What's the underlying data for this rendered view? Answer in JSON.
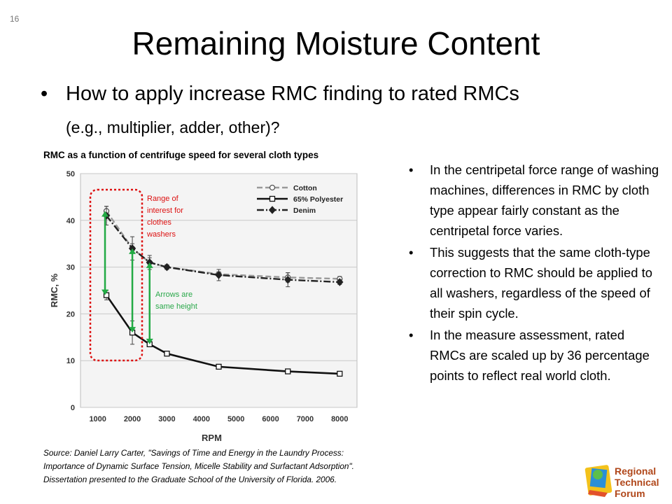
{
  "slide": {
    "number": "16",
    "title": "Remaining Moisture Content"
  },
  "main_bullet": {
    "marker": "•",
    "text": "How to apply increase RMC finding to rated RMCs",
    "subtext": "(e.g., multiplier, adder, other)?"
  },
  "chart_caption": "RMC as a function of centrifuge speed for several cloth types",
  "annotations": {
    "range_label": [
      "Range of",
      "interest for",
      "clothes",
      "washers"
    ],
    "arrows_label": [
      "Arrows are",
      "same height"
    ],
    "range_color": "#dd1111",
    "arrow_color": "#22aa44",
    "arrow_text_color": "#2aa84a"
  },
  "chart_data": {
    "type": "line",
    "xlabel": "RPM",
    "ylabel": "RMC, %",
    "xlim": [
      500,
      8500
    ],
    "ylim": [
      0,
      50
    ],
    "x_ticks": [
      1000,
      2000,
      3000,
      4000,
      5000,
      6000,
      7000,
      8000
    ],
    "y_ticks": [
      0,
      10,
      20,
      30,
      40,
      50
    ],
    "grid": true,
    "legend_position": "top-right",
    "series": [
      {
        "name": "Cotton",
        "style": "dashed",
        "marker": "circle",
        "color": "#999999",
        "x": [
          1250,
          2000,
          2500,
          3000,
          4500,
          6500,
          8000
        ],
        "y": [
          42,
          34,
          31,
          30,
          28.5,
          27.8,
          27.5
        ],
        "err": [
          1,
          1,
          1,
          0.5,
          0.5,
          1,
          0.5
        ]
      },
      {
        "name": "65% Polyester",
        "style": "solid",
        "marker": "square",
        "color": "#111111",
        "x": [
          1250,
          2000,
          2500,
          3000,
          4500,
          6500,
          8000
        ],
        "y": [
          24,
          16,
          13.5,
          11.5,
          8.7,
          7.7,
          7.2
        ],
        "err": [
          1,
          2.5,
          0.5,
          0.3,
          0.3,
          0.3,
          0.3
        ]
      },
      {
        "name": "Denim",
        "style": "dashdot",
        "marker": "diamond",
        "color": "#222222",
        "x": [
          1250,
          2000,
          2500,
          3000,
          4500,
          6500,
          8000
        ],
        "y": [
          41,
          34,
          31,
          30,
          28.3,
          27.3,
          26.8
        ],
        "err": [
          2,
          2.5,
          1.5,
          0.5,
          1.2,
          1.5,
          0.5
        ]
      }
    ]
  },
  "source": "Source: Daniel Larry Carter, \"Savings of Time and Energy in the Laundry Process: Importance of Dynamic Surface Tension, Micelle Stability and Surfactant Adsorption\".  Dissertation presented to the Graduate School of the University of Florida.  2006.",
  "right_bullets": [
    {
      "marker": "•",
      "text": "In the centripetal force range of washing machines, differences in RMC by cloth type appear fairly constant as the centripetal force varies."
    },
    {
      "marker": "•",
      "text": "This suggests that the same cloth-type correction to RMC should be applied to all washers, regardless of the speed of their spin cycle."
    },
    {
      "marker": "•",
      "text": "In the measure assessment, rated RMCs are scaled up by 36 percentage points to reflect real world cloth."
    }
  ],
  "logo": {
    "lines": [
      "Regional",
      "Technical",
      "Forum"
    ],
    "color": "#b0471a"
  }
}
